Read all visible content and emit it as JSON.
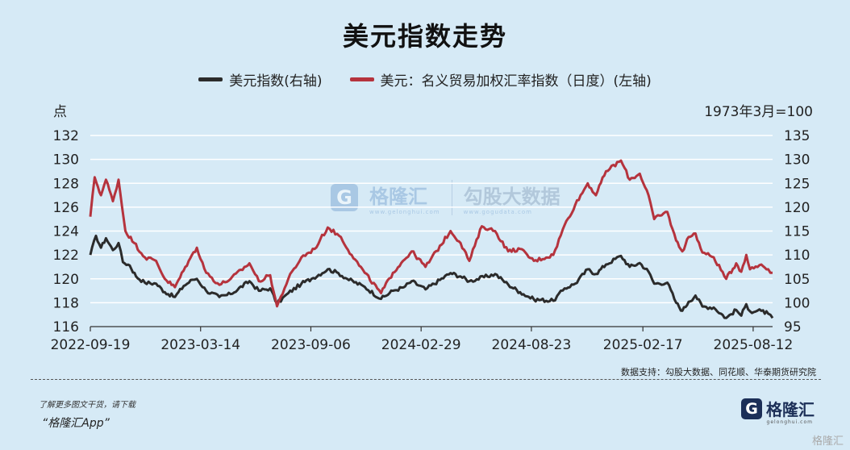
{
  "page": {
    "title": "美元指数走势",
    "left_unit": "点",
    "right_unit": "1973年3月=100",
    "source": "数据支持：勾股大数据、同花顺、华泰期货研究院",
    "promo_line1": "了解更多图文干货，请下载",
    "promo_line2": "“格隆汇App”",
    "logo_mark": "G",
    "logo_name": "格隆汇",
    "logo_sub": "gelonghui.com",
    "corner_mark": "格隆汇",
    "watermark_a": "格隆汇",
    "watermark_a_sub": "www.gelonghui.com",
    "watermark_b": "勾股大数据",
    "watermark_b_sub": "www.gogudata.com"
  },
  "chart_data": {
    "type": "line",
    "title": "美元指数走势",
    "x_tick_labels": [
      "2022-09-19",
      "2023-03-14",
      "2023-09-06",
      "2024-02-29",
      "2024-08-23",
      "2025-02-17",
      "2025-08-12"
    ],
    "x_range": [
      "2022-09-19",
      "2025-09-12"
    ],
    "left_axis": {
      "label": "点",
      "ylim": [
        116,
        132
      ],
      "ticks": [
        116,
        118,
        120,
        122,
        124,
        126,
        128,
        130,
        132
      ]
    },
    "right_axis": {
      "label": "1973年3月=100",
      "ylim": [
        95,
        135
      ],
      "ticks": [
        95,
        100,
        105,
        110,
        115,
        120,
        125,
        130,
        135
      ]
    },
    "grid": true,
    "legend": "top-center",
    "series": [
      {
        "name": "美元指数(右轴)",
        "axis": "right",
        "color": "#2b2b2b",
        "points": [
          [
            "2022-09-19",
            110.0
          ],
          [
            "2022-09-28",
            114.0
          ],
          [
            "2022-10-06",
            111.5
          ],
          [
            "2022-10-14",
            113.5
          ],
          [
            "2022-10-25",
            111.0
          ],
          [
            "2022-11-03",
            112.5
          ],
          [
            "2022-11-10",
            108.5
          ],
          [
            "2022-11-21",
            107.8
          ],
          [
            "2022-12-01",
            105.5
          ],
          [
            "2022-12-15",
            104.2
          ],
          [
            "2023-01-02",
            104.0
          ],
          [
            "2023-01-16",
            102.2
          ],
          [
            "2023-02-01",
            101.2
          ],
          [
            "2023-02-15",
            103.5
          ],
          [
            "2023-03-01",
            104.8
          ],
          [
            "2023-03-08",
            105.0
          ],
          [
            "2023-03-23",
            102.5
          ],
          [
            "2023-04-13",
            101.2
          ],
          [
            "2023-05-01",
            101.8
          ],
          [
            "2023-05-31",
            104.5
          ],
          [
            "2023-06-15",
            102.5
          ],
          [
            "2023-07-03",
            103.0
          ],
          [
            "2023-07-14",
            99.8
          ],
          [
            "2023-08-01",
            102.0
          ],
          [
            "2023-08-22",
            104.0
          ],
          [
            "2023-09-07",
            105.0
          ],
          [
            "2023-10-03",
            107.0
          ],
          [
            "2023-10-20",
            106.2
          ],
          [
            "2023-11-03",
            105.0
          ],
          [
            "2023-12-01",
            103.3
          ],
          [
            "2023-12-27",
            100.8
          ],
          [
            "2024-01-15",
            102.5
          ],
          [
            "2024-02-01",
            103.2
          ],
          [
            "2024-02-14",
            104.5
          ],
          [
            "2024-03-07",
            102.8
          ],
          [
            "2024-04-16",
            106.2
          ],
          [
            "2024-05-02",
            105.5
          ],
          [
            "2024-05-16",
            104.5
          ],
          [
            "2024-06-26",
            106.0
          ],
          [
            "2024-07-17",
            103.8
          ],
          [
            "2024-08-05",
            102.2
          ],
          [
            "2024-08-27",
            100.7
          ],
          [
            "2024-09-27",
            100.4
          ],
          [
            "2024-10-15",
            103.0
          ],
          [
            "2024-11-01",
            104.0
          ],
          [
            "2024-11-21",
            107.0
          ],
          [
            "2024-12-04",
            106.0
          ],
          [
            "2024-12-20",
            108.0
          ],
          [
            "2025-01-13",
            109.8
          ],
          [
            "2025-01-27",
            107.5
          ],
          [
            "2025-02-12",
            108.3
          ],
          [
            "2025-02-26",
            106.5
          ],
          [
            "2025-03-07",
            104.0
          ],
          [
            "2025-03-28",
            104.2
          ],
          [
            "2025-04-11",
            100.0
          ],
          [
            "2025-04-21",
            98.3
          ],
          [
            "2025-05-01",
            100.2
          ],
          [
            "2025-05-12",
            101.5
          ],
          [
            "2025-05-23",
            99.2
          ],
          [
            "2025-06-10",
            99.0
          ],
          [
            "2025-06-30",
            96.8
          ],
          [
            "2025-07-16",
            98.5
          ],
          [
            "2025-07-24",
            97.3
          ],
          [
            "2025-08-01",
            99.7
          ],
          [
            "2025-08-07",
            98.2
          ],
          [
            "2025-08-25",
            98.3
          ],
          [
            "2025-09-05",
            97.7
          ],
          [
            "2025-09-12",
            96.8
          ]
        ]
      },
      {
        "name": "美元：名义贸易加权汇率指数（日度）(左轴)",
        "axis": "left",
        "color": "#b5333d",
        "points": [
          [
            "2022-09-19",
            125.2
          ],
          [
            "2022-09-26",
            128.5
          ],
          [
            "2022-10-06",
            127.0
          ],
          [
            "2022-10-14",
            128.3
          ],
          [
            "2022-10-25",
            126.5
          ],
          [
            "2022-11-03",
            128.3
          ],
          [
            "2022-11-14",
            124.0
          ],
          [
            "2022-11-28",
            123.0
          ],
          [
            "2022-12-15",
            121.8
          ],
          [
            "2023-01-02",
            121.5
          ],
          [
            "2023-01-16",
            120.0
          ],
          [
            "2023-02-01",
            119.3
          ],
          [
            "2023-02-23",
            121.5
          ],
          [
            "2023-03-08",
            122.6
          ],
          [
            "2023-03-23",
            120.5
          ],
          [
            "2023-04-13",
            119.5
          ],
          [
            "2023-05-01",
            120.0
          ],
          [
            "2023-05-31",
            121.3
          ],
          [
            "2023-06-15",
            119.8
          ],
          [
            "2023-07-03",
            120.3
          ],
          [
            "2023-07-14",
            117.7
          ],
          [
            "2023-08-01",
            120.0
          ],
          [
            "2023-08-22",
            121.8
          ],
          [
            "2023-09-12",
            122.5
          ],
          [
            "2023-10-03",
            124.3
          ],
          [
            "2023-10-24",
            123.5
          ],
          [
            "2023-11-10",
            122.0
          ],
          [
            "2023-12-01",
            120.5
          ],
          [
            "2023-12-27",
            118.8
          ],
          [
            "2024-01-15",
            120.5
          ],
          [
            "2024-01-31",
            121.5
          ],
          [
            "2024-02-14",
            122.3
          ],
          [
            "2024-03-07",
            121.0
          ],
          [
            "2024-04-16",
            124.0
          ],
          [
            "2024-05-02",
            123.0
          ],
          [
            "2024-05-16",
            121.5
          ],
          [
            "2024-06-05",
            124.4
          ],
          [
            "2024-06-26",
            124.0
          ],
          [
            "2024-07-17",
            122.3
          ],
          [
            "2024-08-05",
            122.5
          ],
          [
            "2024-08-27",
            121.5
          ],
          [
            "2024-09-27",
            122.0
          ],
          [
            "2024-10-15",
            124.5
          ],
          [
            "2024-11-01",
            126.2
          ],
          [
            "2024-11-21",
            128.0
          ],
          [
            "2024-12-04",
            127.0
          ],
          [
            "2024-12-20",
            129.0
          ],
          [
            "2025-01-13",
            129.9
          ],
          [
            "2025-01-27",
            128.3
          ],
          [
            "2025-02-12",
            128.8
          ],
          [
            "2025-02-26",
            127.0
          ],
          [
            "2025-03-07",
            125.0
          ],
          [
            "2025-03-28",
            125.6
          ],
          [
            "2025-04-11",
            123.2
          ],
          [
            "2025-04-21",
            122.3
          ],
          [
            "2025-05-01",
            123.5
          ],
          [
            "2025-05-12",
            123.8
          ],
          [
            "2025-05-23",
            122.2
          ],
          [
            "2025-06-10",
            121.8
          ],
          [
            "2025-06-30",
            120.0
          ],
          [
            "2025-07-16",
            121.3
          ],
          [
            "2025-07-24",
            120.6
          ],
          [
            "2025-08-01",
            122.0
          ],
          [
            "2025-08-07",
            120.8
          ],
          [
            "2025-08-25",
            121.2
          ],
          [
            "2025-09-05",
            120.8
          ],
          [
            "2025-09-12",
            120.5
          ]
        ]
      }
    ]
  }
}
